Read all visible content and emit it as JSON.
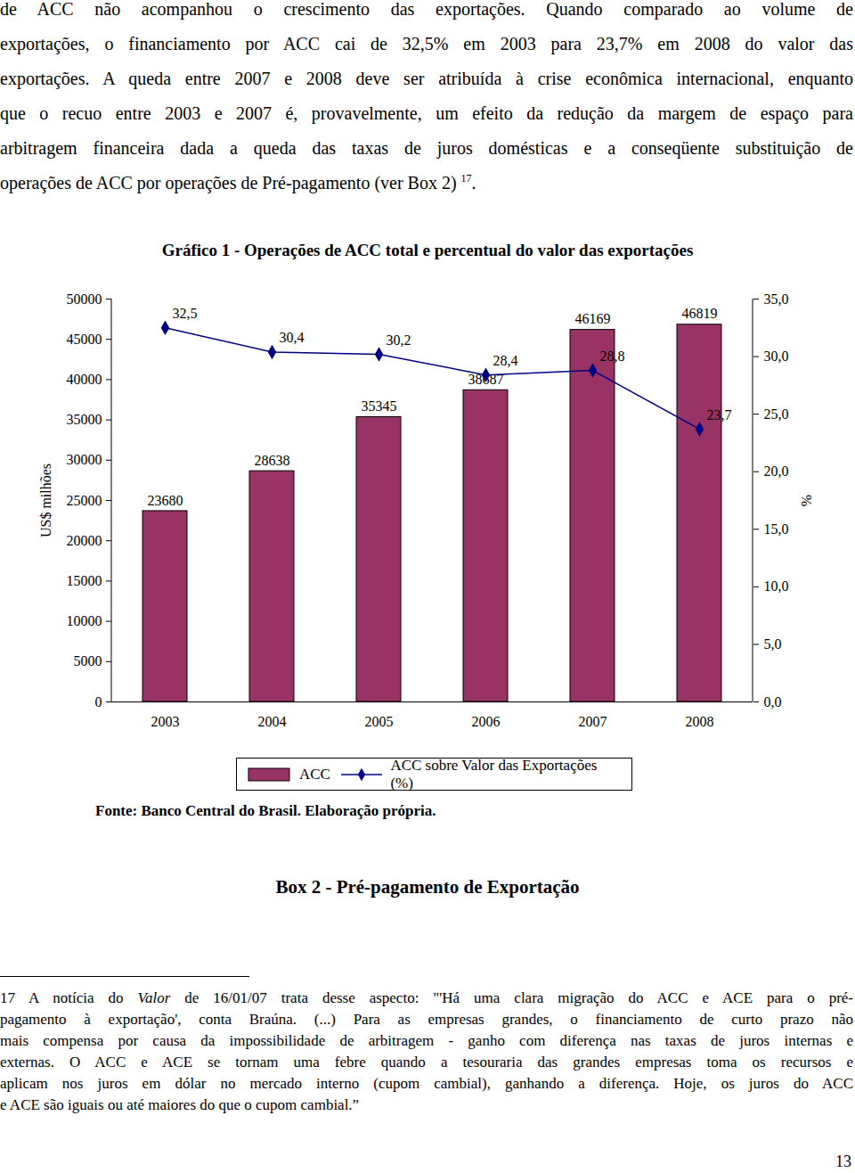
{
  "paragraph": {
    "lines": [
      "de ACC não acompanhou o crescimento das exportações. Quando comparado ao volume de",
      "exportações, o financiamento por ACC cai de 32,5% em 2003 para 23,7% em 2008 do valor das",
      "exportações. A queda entre 2007 e 2008 deve ser atribuída à crise econômica internacional, enquanto",
      "que o recuo entre 2003 e 2007 é, provavelmente, um efeito da redução da margem de espaço para",
      "arbitragem financeira dada a queda das taxas de juros domésticas e a conseqüente substituição de",
      [
        {
          "text": "operações de ACC por operações de Pré-pagamento (ver Box 2) "
        },
        {
          "text": "17",
          "sup": true
        },
        {
          "text": "."
        }
      ]
    ]
  },
  "chart_data": {
    "type": "bar",
    "title": "Gráfico 1 - Operações de ACC total e percentual do valor das exportações",
    "ylabel": "US$ milhões",
    "y2label": "%",
    "categories": [
      "2003",
      "2004",
      "2005",
      "2006",
      "2007",
      "2008"
    ],
    "series": [
      {
        "name": "ACC",
        "type": "bar",
        "color": "#993366",
        "values": [
          23680,
          28638,
          35345,
          38687,
          46169,
          46819
        ]
      },
      {
        "name": "ACC sobre Valor das Exportações (%)",
        "type": "line",
        "axis": "y2",
        "color": "#000080",
        "marker": "diamond",
        "line_style": "solid",
        "values": [
          32.5,
          30.4,
          30.2,
          28.4,
          28.8,
          23.7
        ],
        "value_labels": [
          "32,5",
          "30,4",
          "30,2",
          "28,4",
          "28,8",
          "23,7"
        ]
      }
    ],
    "ylim": [
      0,
      50000
    ],
    "yticks": [
      0,
      5000,
      10000,
      15000,
      20000,
      25000,
      30000,
      35000,
      40000,
      45000,
      50000
    ],
    "y2lim": [
      0,
      35
    ],
    "y2ticks": [
      {
        "value": 0,
        "label": "0,0"
      },
      {
        "value": 5,
        "label": "5,0"
      },
      {
        "value": 10,
        "label": "10,0"
      },
      {
        "value": 15,
        "label": "15,0"
      },
      {
        "value": 20,
        "label": "20,0"
      },
      {
        "value": 25,
        "label": "25,0"
      },
      {
        "value": 30,
        "label": "30,0"
      },
      {
        "value": 35,
        "label": "35,0"
      }
    ],
    "grid": false,
    "legend": "bottom",
    "data_labels": true,
    "source": "Fonte: Banco Central do Brasil. Elaboração própria."
  },
  "box": {
    "title": "Box 2 - Pré-pagamento de Exportação"
  },
  "footnote": {
    "mark": "17",
    "lines": [
      [
        {
          "text": "A notícia do "
        },
        {
          "text": "Valor",
          "italic": true
        },
        {
          "text": " de 16/01/07 trata desse aspecto: \"'Há uma clara migração do ACC e ACE para o pré-"
        }
      ],
      "pagamento à exportação', conta Braúna. (...) Para as empresas grandes, o financiamento de curto prazo não",
      "mais compensa por causa da impossibilidade de arbitragem - ganho com diferença nas taxas de juros internas e",
      "externas. O ACC e ACE se tornam uma febre quando a tesouraria das grandes empresas toma os recursos e",
      "aplicam nos juros em dólar no mercado interno (cupom cambial), ganhando a diferença. Hoje, os juros do ACC",
      "e ACE são iguais ou até maiores do que o cupom cambial.”"
    ]
  },
  "page_number": 13
}
